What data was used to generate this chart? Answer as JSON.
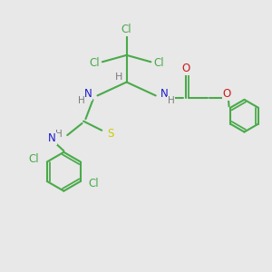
{
  "bg_color": "#e8e8e8",
  "bond_color": "#4aaa4a",
  "bond_width": 1.5,
  "atom_colors": {
    "N": "#1a1acc",
    "O": "#cc1a1a",
    "S": "#cccc00",
    "Cl": "#4aaa4a",
    "H": "#7a7a7a"
  },
  "font_size": 8.5,
  "ring_r": 0.72,
  "small_ring_r": 0.6
}
